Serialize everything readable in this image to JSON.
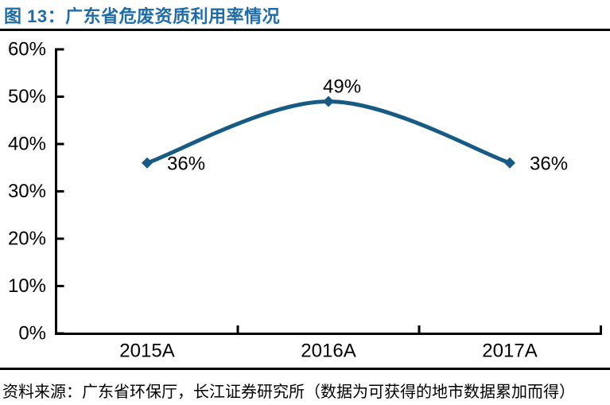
{
  "header": {
    "title": "图 13：广东省危废资质利用率情况"
  },
  "footer": {
    "source": "资料来源：广东省环保厅，长江证券研究所（数据为可获得的地市数据累加而得）"
  },
  "colors": {
    "title_blue": "#1e6ca8",
    "line_blue": "#175b85",
    "axis_black": "#000000",
    "text_black": "#000000",
    "rule_black": "#000000",
    "background": "#ffffff"
  },
  "chart_data": {
    "type": "line",
    "title": "广东省危废资质利用率情况",
    "categories": [
      "2015A",
      "2016A",
      "2017A"
    ],
    "values": [
      36,
      49,
      36
    ],
    "data_labels": [
      "36%",
      "49%",
      "36%"
    ],
    "data_label_positions": [
      "right",
      "above",
      "right"
    ],
    "y_tick_values": [
      0,
      10,
      20,
      30,
      40,
      50,
      60
    ],
    "y_tick_labels": [
      "0%",
      "10%",
      "20%",
      "30%",
      "40%",
      "50%",
      "60%"
    ],
    "ylim": [
      0,
      60
    ],
    "xlabel": "",
    "ylabel": "",
    "grid": false,
    "legend": false,
    "smooth": true,
    "marker": "diamond"
  }
}
